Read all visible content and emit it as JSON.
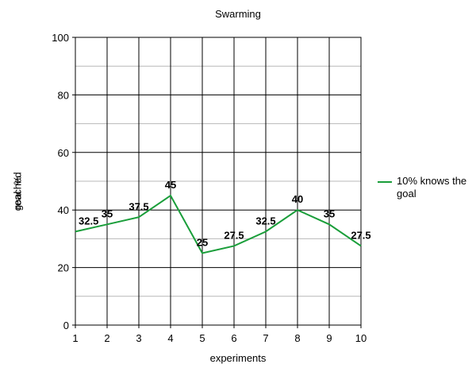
{
  "chart_data": {
    "type": "line",
    "title": "Swarming",
    "xlabel": "experiments",
    "ylabel_lines": [
      "%",
      "reached",
      "goal"
    ],
    "x": [
      1,
      2,
      3,
      4,
      5,
      6,
      7,
      8,
      9,
      10
    ],
    "series": [
      {
        "name": "10% knows the goal",
        "values": [
          32.5,
          35,
          37.5,
          45,
          25,
          27.5,
          32.5,
          40,
          35,
          27.5
        ],
        "labels": [
          "32.5",
          "35",
          "37.5",
          "45",
          "25",
          "27.5",
          "32.5",
          "40",
          "35",
          "27.5"
        ],
        "color": "#1a9e3a"
      }
    ],
    "xlim": [
      1,
      10
    ],
    "ylim": [
      0,
      100
    ],
    "yticks": [
      0,
      20,
      40,
      60,
      80,
      100
    ],
    "grid": true,
    "legend_position": "right"
  }
}
